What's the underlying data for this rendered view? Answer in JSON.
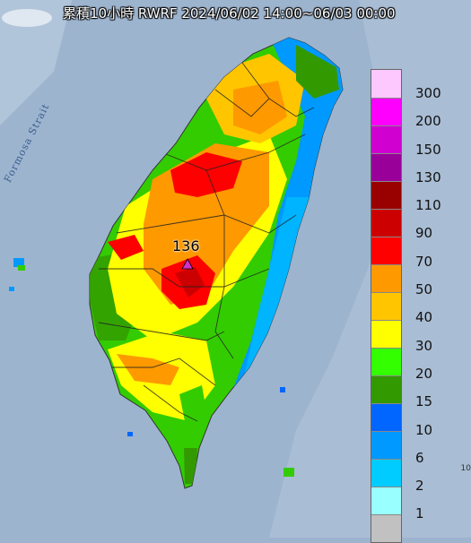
{
  "title": "累積10小時 RWRF 2024/06/02 14:00~06/03 00:00",
  "sea_label": "Formosa Strait",
  "max_marker": {
    "value_label": "136",
    "icon": "triangle-marker-icon",
    "color": "#cc33cc"
  },
  "legend": [
    {
      "label": "300",
      "color": "#fdc8fe"
    },
    {
      "label": "200",
      "color": "#fe00fe"
    },
    {
      "label": "150",
      "color": "#cf00d0"
    },
    {
      "label": "130",
      "color": "#990099"
    },
    {
      "label": "110",
      "color": "#990000"
    },
    {
      "label": "90",
      "color": "#cc0000"
    },
    {
      "label": "70",
      "color": "#fe0000"
    },
    {
      "label": "50",
      "color": "#fe9900"
    },
    {
      "label": "40",
      "color": "#ffc600"
    },
    {
      "label": "30",
      "color": "#ffff00"
    },
    {
      "label": "20",
      "color": "#33ff00"
    },
    {
      "label": "15",
      "color": "#339900"
    },
    {
      "label": "10",
      "color": "#0066ff"
    },
    {
      "label": "6",
      "color": "#0099ff"
    },
    {
      "label": "2",
      "color": "#00ccff"
    },
    {
      "label": "1",
      "color": "#99ffff"
    },
    {
      "label": "",
      "color": "#c1c1c1"
    }
  ],
  "corner_text": "10"
}
